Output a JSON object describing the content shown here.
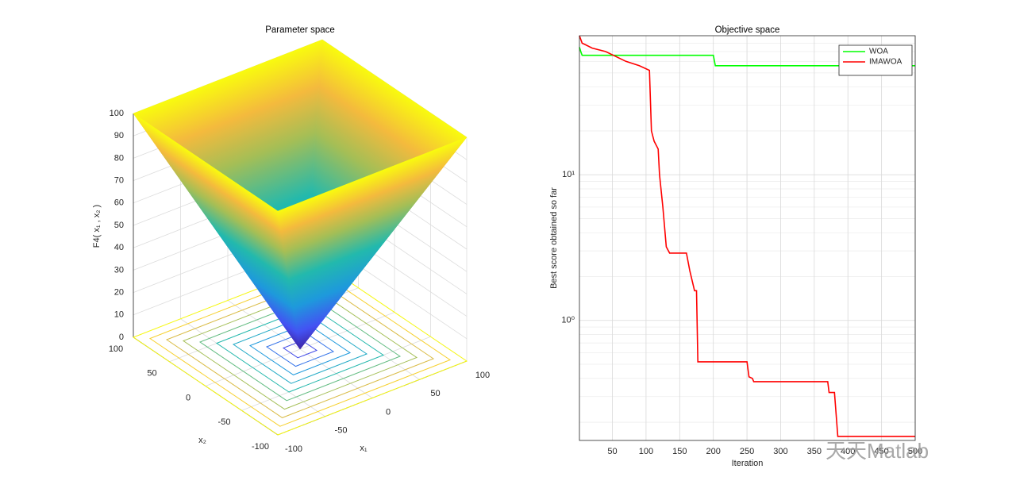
{
  "chart_data": [
    {
      "type": "surface",
      "title": "Parameter space",
      "xlabel": "x₁",
      "ylabel": "x₂",
      "zlabel": "F4( x₁ , x₂ )",
      "xlim": [
        -100,
        100
      ],
      "ylim": [
        -100,
        100
      ],
      "zlim": [
        0,
        100
      ],
      "xticks": [
        -100,
        -50,
        0,
        50,
        100
      ],
      "yticks": [
        -100,
        -50,
        0,
        50,
        100
      ],
      "zticks": [
        0,
        10,
        20,
        30,
        40,
        50,
        60,
        70,
        80,
        90,
        100
      ],
      "grid": true
    },
    {
      "type": "line",
      "title": "Objective space",
      "xlabel": "Iteration",
      "ylabel": "Best score obtained so far",
      "log_y": true,
      "grid": true,
      "legend": "northeast",
      "xlim": [
        1,
        500
      ],
      "xticks": [
        50,
        100,
        150,
        200,
        250,
        300,
        350,
        400,
        450,
        500
      ],
      "ylim": [
        0.15,
        90
      ],
      "yticks": [
        {
          "value": 1,
          "label": "10⁰"
        },
        {
          "value": 10,
          "label": "10¹"
        }
      ],
      "series": [
        {
          "name": "WOA",
          "color": "#00ff00",
          "x": [
            1,
            3,
            5,
            200,
            203,
            500
          ],
          "values": [
            75,
            70,
            66,
            66,
            56,
            56
          ]
        },
        {
          "name": "IMAWOA",
          "color": "#ff0000",
          "x": [
            1,
            5,
            10,
            20,
            40,
            70,
            90,
            105,
            108,
            112,
            118,
            120,
            125,
            130,
            135,
            160,
            165,
            172,
            175,
            177,
            250,
            253,
            258,
            260,
            370,
            372,
            380,
            385,
            500
          ],
          "values": [
            90,
            80,
            78,
            74,
            70,
            60,
            56,
            52,
            20,
            17,
            15,
            10,
            6,
            3.2,
            2.9,
            2.9,
            2.2,
            1.6,
            1.6,
            0.52,
            0.52,
            0.41,
            0.4,
            0.38,
            0.38,
            0.32,
            0.32,
            0.16,
            0.16
          ]
        }
      ]
    }
  ],
  "watermark": "天天Matlab"
}
